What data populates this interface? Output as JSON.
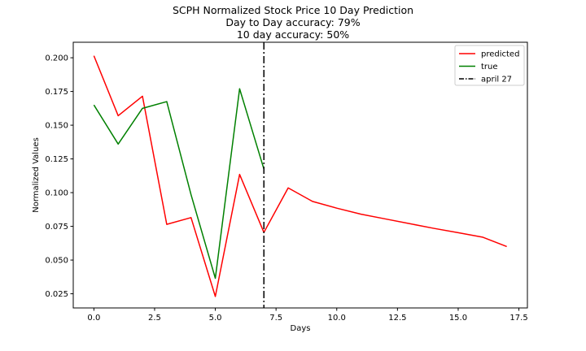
{
  "chart_data": {
    "type": "line",
    "title_lines": [
      "SCPH Normalized Stock Price 10 Day Prediction",
      "Day to Day accuracy: 79%",
      "10 day accuracy: 50%"
    ],
    "xlabel": "Days",
    "ylabel": "Normalized Values",
    "xlim": [
      -0.85,
      17.85
    ],
    "ylim": [
      0.0145,
      0.2115
    ],
    "xticks": [
      0.0,
      2.5,
      5.0,
      7.5,
      10.0,
      12.5,
      15.0,
      17.5
    ],
    "xtick_labels": [
      "0.0",
      "2.5",
      "5.0",
      "7.5",
      "10.0",
      "12.5",
      "15.0",
      "17.5"
    ],
    "yticks": [
      0.025,
      0.05,
      0.075,
      0.1,
      0.125,
      0.15,
      0.175,
      0.2
    ],
    "ytick_labels": [
      "0.025",
      "0.050",
      "0.075",
      "0.100",
      "0.125",
      "0.150",
      "0.175",
      "0.200"
    ],
    "grid": false,
    "legend_position": "top-right",
    "series": [
      {
        "name": "predicted",
        "color": "#ff0000",
        "x": [
          0,
          1,
          2,
          3,
          4,
          5,
          6,
          7,
          8,
          9,
          10,
          11,
          12,
          13,
          14,
          15,
          16,
          17
        ],
        "y": [
          0.2015,
          0.157,
          0.1715,
          0.0765,
          0.0815,
          0.023,
          0.1135,
          0.0705,
          0.1035,
          0.0935,
          0.0885,
          0.084,
          0.0805,
          0.077,
          0.0735,
          0.0703,
          0.067,
          0.06
        ]
      },
      {
        "name": "true",
        "color": "#008000",
        "x": [
          0,
          1,
          2,
          3,
          4,
          5,
          6,
          7
        ],
        "y": [
          0.165,
          0.136,
          0.1625,
          0.1675,
          0.0985,
          0.0365,
          0.177,
          0.1175
        ]
      }
    ],
    "vline": {
      "name": "april 27",
      "x": 7,
      "color": "#000000",
      "style": "dash-dot"
    }
  }
}
